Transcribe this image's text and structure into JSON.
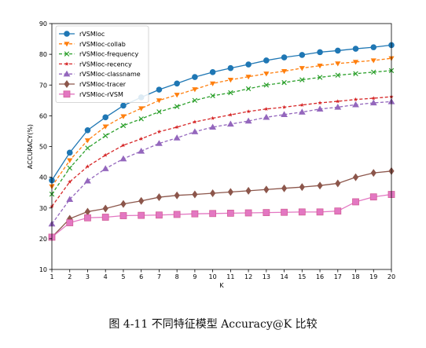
{
  "caption": "图 4-11  不同特征模型 Accuracy@K 比较",
  "chart_data": {
    "type": "line",
    "xlabel": "K",
    "ylabel": "ACCURACY(%)",
    "xlim": [
      1,
      20
    ],
    "ylim": [
      10,
      90
    ],
    "xticks": [
      1,
      2,
      3,
      4,
      5,
      6,
      7,
      8,
      9,
      10,
      11,
      12,
      13,
      14,
      15,
      16,
      17,
      18,
      19,
      20
    ],
    "yticks": [
      10,
      20,
      30,
      40,
      50,
      60,
      70,
      80,
      90
    ],
    "grid": false,
    "legend_position": "top-left",
    "x": [
      1,
      2,
      3,
      4,
      5,
      6,
      7,
      8,
      9,
      10,
      11,
      12,
      13,
      14,
      15,
      16,
      17,
      18,
      19,
      20
    ],
    "series": [
      {
        "name": "rVSMloc",
        "color": "#1f77b4",
        "marker": "circle",
        "dash": "solid",
        "values": [
          39,
          48,
          55.3,
          59.5,
          63.3,
          66,
          68.5,
          70.5,
          72.6,
          74.2,
          75.5,
          76.7,
          78,
          79,
          79.8,
          80.7,
          81.2,
          81.8,
          82.3,
          83
        ]
      },
      {
        "name": "rVSMloc-collab",
        "color": "#ff7f0e",
        "marker": "triangle-down",
        "dash": "dashed",
        "values": [
          37,
          45.5,
          52,
          56.5,
          59.8,
          62.4,
          65,
          66.8,
          68.6,
          70.5,
          71.7,
          72.7,
          73.7,
          74.5,
          75.5,
          76.3,
          77,
          77.5,
          78,
          78.7
        ]
      },
      {
        "name": "rVSMloc-frequency",
        "color": "#2ca02c",
        "marker": "x",
        "dash": "dashed",
        "values": [
          34.5,
          43,
          49.5,
          53.5,
          56.8,
          59,
          61.3,
          63,
          65,
          66.5,
          67.5,
          68.8,
          70,
          70.8,
          71.7,
          72.5,
          73.2,
          73.7,
          74.2,
          74.7
        ]
      },
      {
        "name": "rVSMloc-recency",
        "color": "#d62728",
        "marker": "star",
        "dash": "dashed",
        "values": [
          30.5,
          38.5,
          43.5,
          47.2,
          50.4,
          52.5,
          54.8,
          56.3,
          58,
          59.2,
          60.3,
          61.4,
          62.2,
          62.8,
          63.5,
          64.2,
          64.7,
          65.3,
          65.7,
          66.2
        ]
      },
      {
        "name": "rVSMloc-classname",
        "color": "#9467bd",
        "marker": "triangle-up",
        "dash": "dashed",
        "values": [
          24.8,
          32.8,
          38.8,
          42.8,
          46,
          48.5,
          51,
          52.8,
          54.8,
          56.3,
          57.3,
          58.3,
          59.5,
          60.4,
          61.2,
          62.2,
          62.8,
          63.6,
          64.2,
          64.6
        ]
      },
      {
        "name": "rVSMloc-tracer",
        "color": "#8c564b",
        "marker": "diamond",
        "dash": "solid",
        "values": [
          20.5,
          26.5,
          28.8,
          29.8,
          31.3,
          32.3,
          33.5,
          34.1,
          34.4,
          34.8,
          35.2,
          35.6,
          36,
          36.4,
          36.8,
          37.3,
          38,
          40,
          41.4,
          42
        ]
      },
      {
        "name": "rVSMloc-rVSM",
        "color": "#e377c2",
        "marker": "square",
        "dash": "solid",
        "values": [
          20.5,
          25.2,
          26.8,
          27,
          27.5,
          27.6,
          27.7,
          27.9,
          28.1,
          28.2,
          28.3,
          28.4,
          28.5,
          28.6,
          28.7,
          28.7,
          29,
          32,
          33.6,
          34.4
        ]
      }
    ]
  }
}
